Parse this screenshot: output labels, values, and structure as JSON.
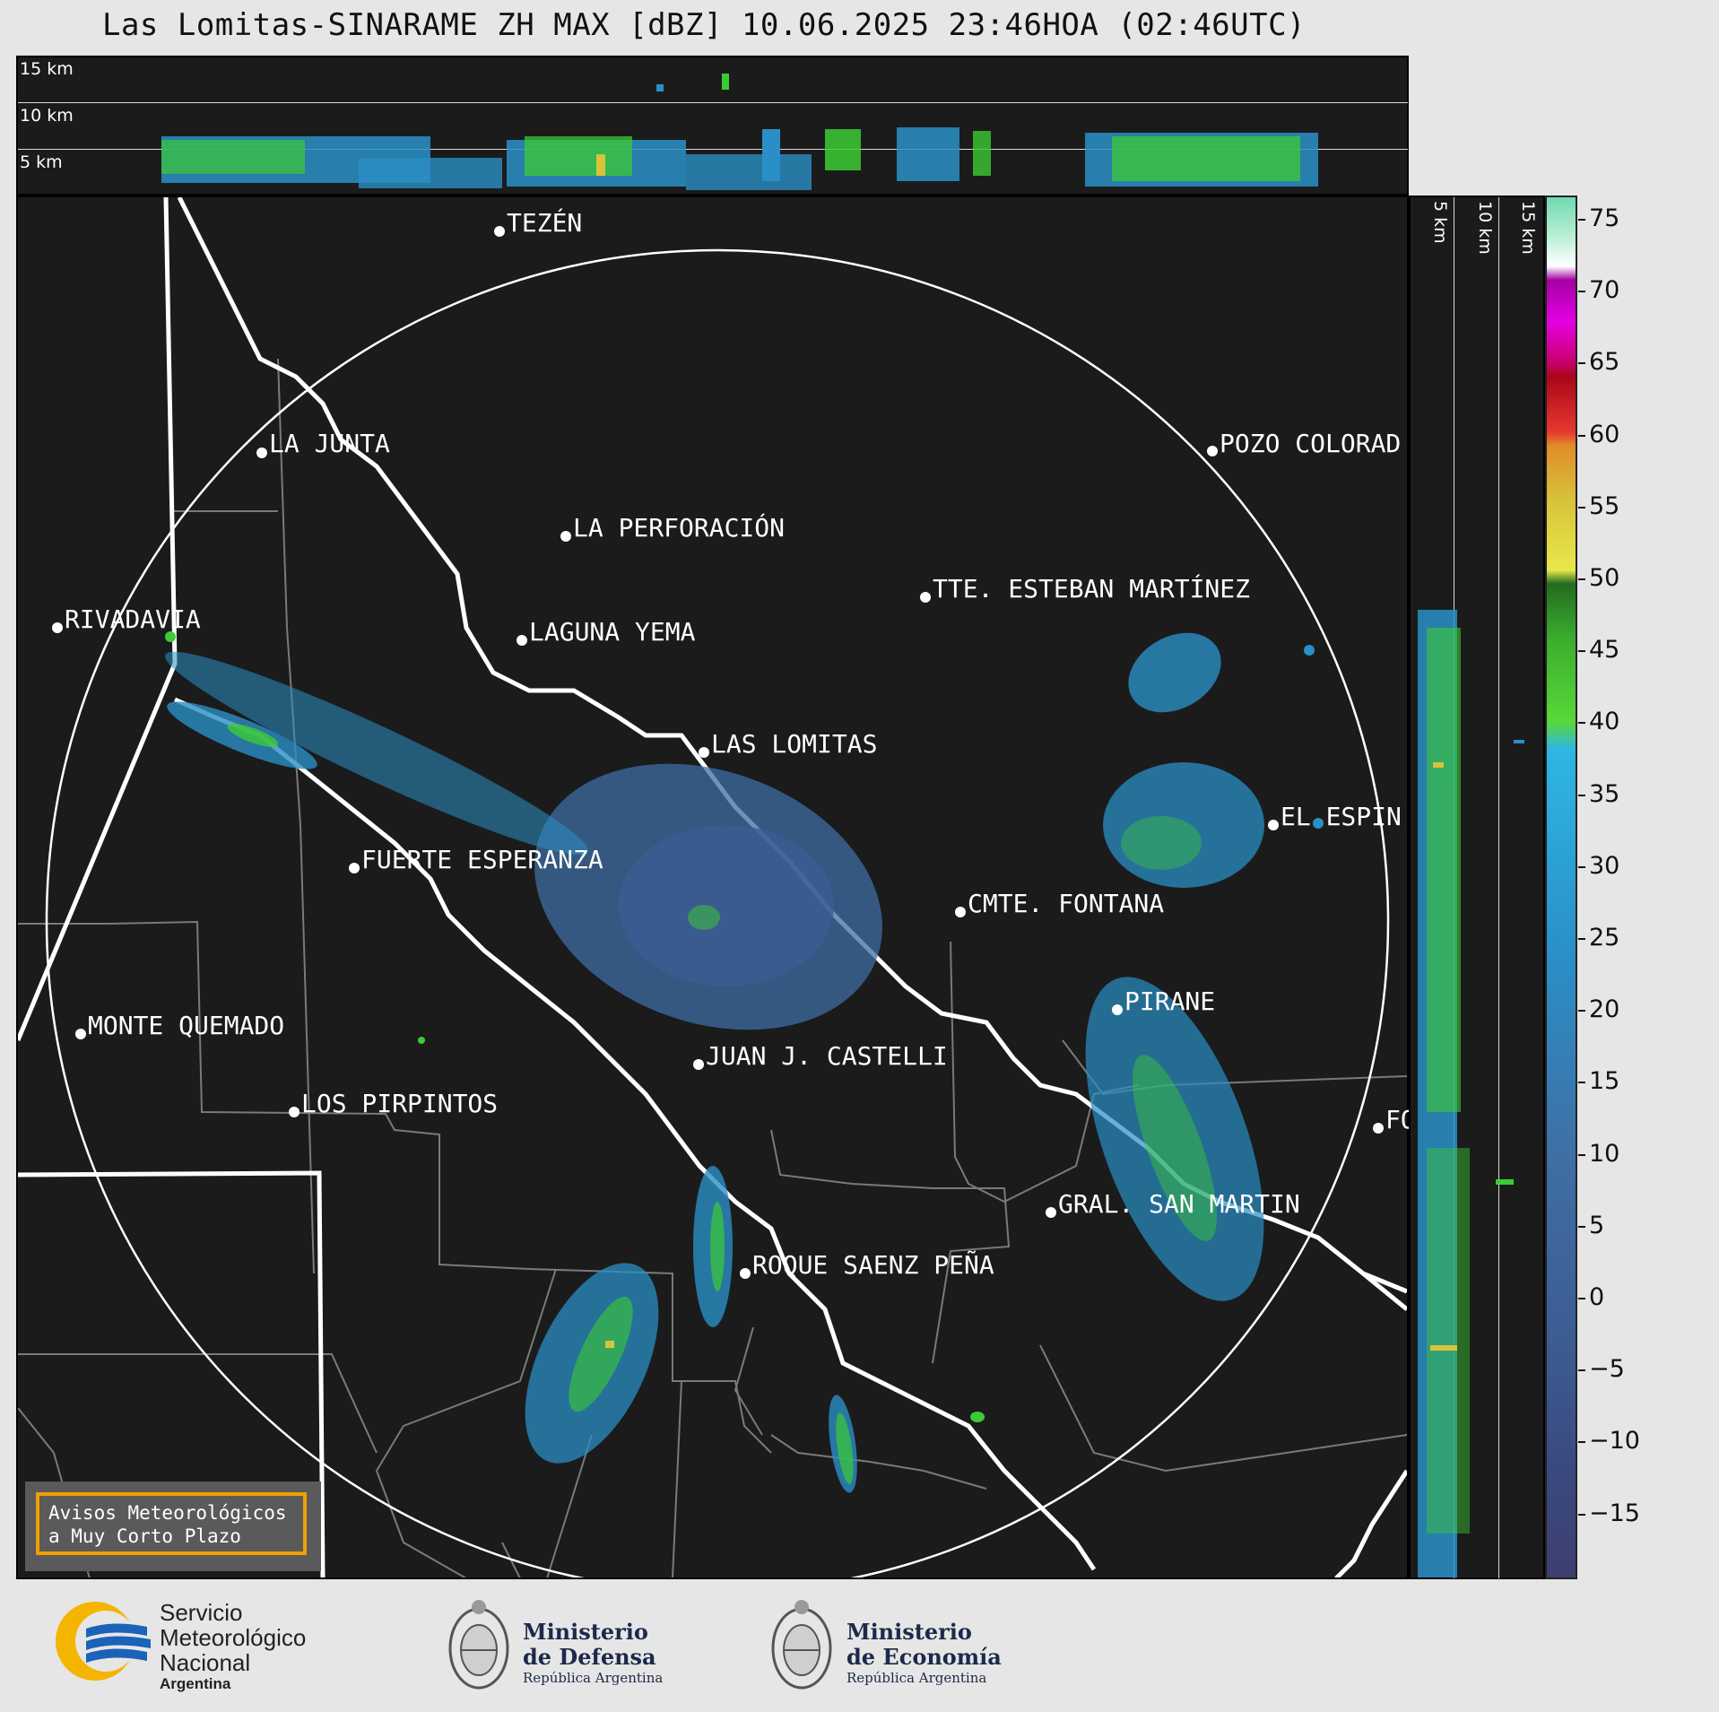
{
  "title": "Las Lomitas-SINARAME ZH MAX [dBZ] 10.06.2025 23:46HOA (02:46UTC)",
  "top_panel": {
    "alt_labels": [
      "15 km",
      "10 km",
      "5 km"
    ]
  },
  "side_panel": {
    "alt_labels": [
      "5 km",
      "10 km",
      "15 km"
    ]
  },
  "cities": [
    {
      "name": "TEZÉN"
    },
    {
      "name": "LA JUNTA"
    },
    {
      "name": "POZO COLORAD"
    },
    {
      "name": "LA PERFORACIÓN"
    },
    {
      "name": "TTE. ESTEBAN MARTÍNEZ"
    },
    {
      "name": "RIVADAVIA"
    },
    {
      "name": "LAGUNA YEMA"
    },
    {
      "name": "LAS LOMITAS"
    },
    {
      "name": "EL ESPIN"
    },
    {
      "name": "FUERTE ESPERANZA"
    },
    {
      "name": "CMTE. FONTANA"
    },
    {
      "name": "PIRANE"
    },
    {
      "name": "MONTE QUEMADO"
    },
    {
      "name": "JUAN J. CASTELLI"
    },
    {
      "name": "LOS PIRPINTOS"
    },
    {
      "name": "GRAL. SAN MARTIN"
    },
    {
      "name": "ROQUE SAENZ PEÑA"
    },
    {
      "name": "FO"
    }
  ],
  "colorbar": {
    "unit": "dBZ",
    "ticks": [
      "75",
      "70",
      "65",
      "60",
      "55",
      "50",
      "45",
      "40",
      "35",
      "30",
      "25",
      "20",
      "15",
      "10",
      "5",
      "0",
      "−5",
      "−10",
      "−15"
    ]
  },
  "aviso": {
    "line1": "Avisos Meteorológicos",
    "line2": "a Muy Corto Plazo"
  },
  "logos": {
    "smn": {
      "line1": "Servicio",
      "line2": "Meteorológico",
      "line3": "Nacional",
      "line4": "Argentina"
    },
    "defensa": {
      "line1": "Ministerio",
      "line2": "de Defensa",
      "line3": "República Argentina"
    },
    "economia": {
      "line1": "Ministerio",
      "line2": "de Economía",
      "line3": "República Argentina"
    }
  },
  "colors": {
    "brand_blue": "#1b63b8",
    "brand_yellow": "#f4b400",
    "ring": "#ffffff",
    "border": "#ffffff",
    "province_lines": "#808080"
  }
}
